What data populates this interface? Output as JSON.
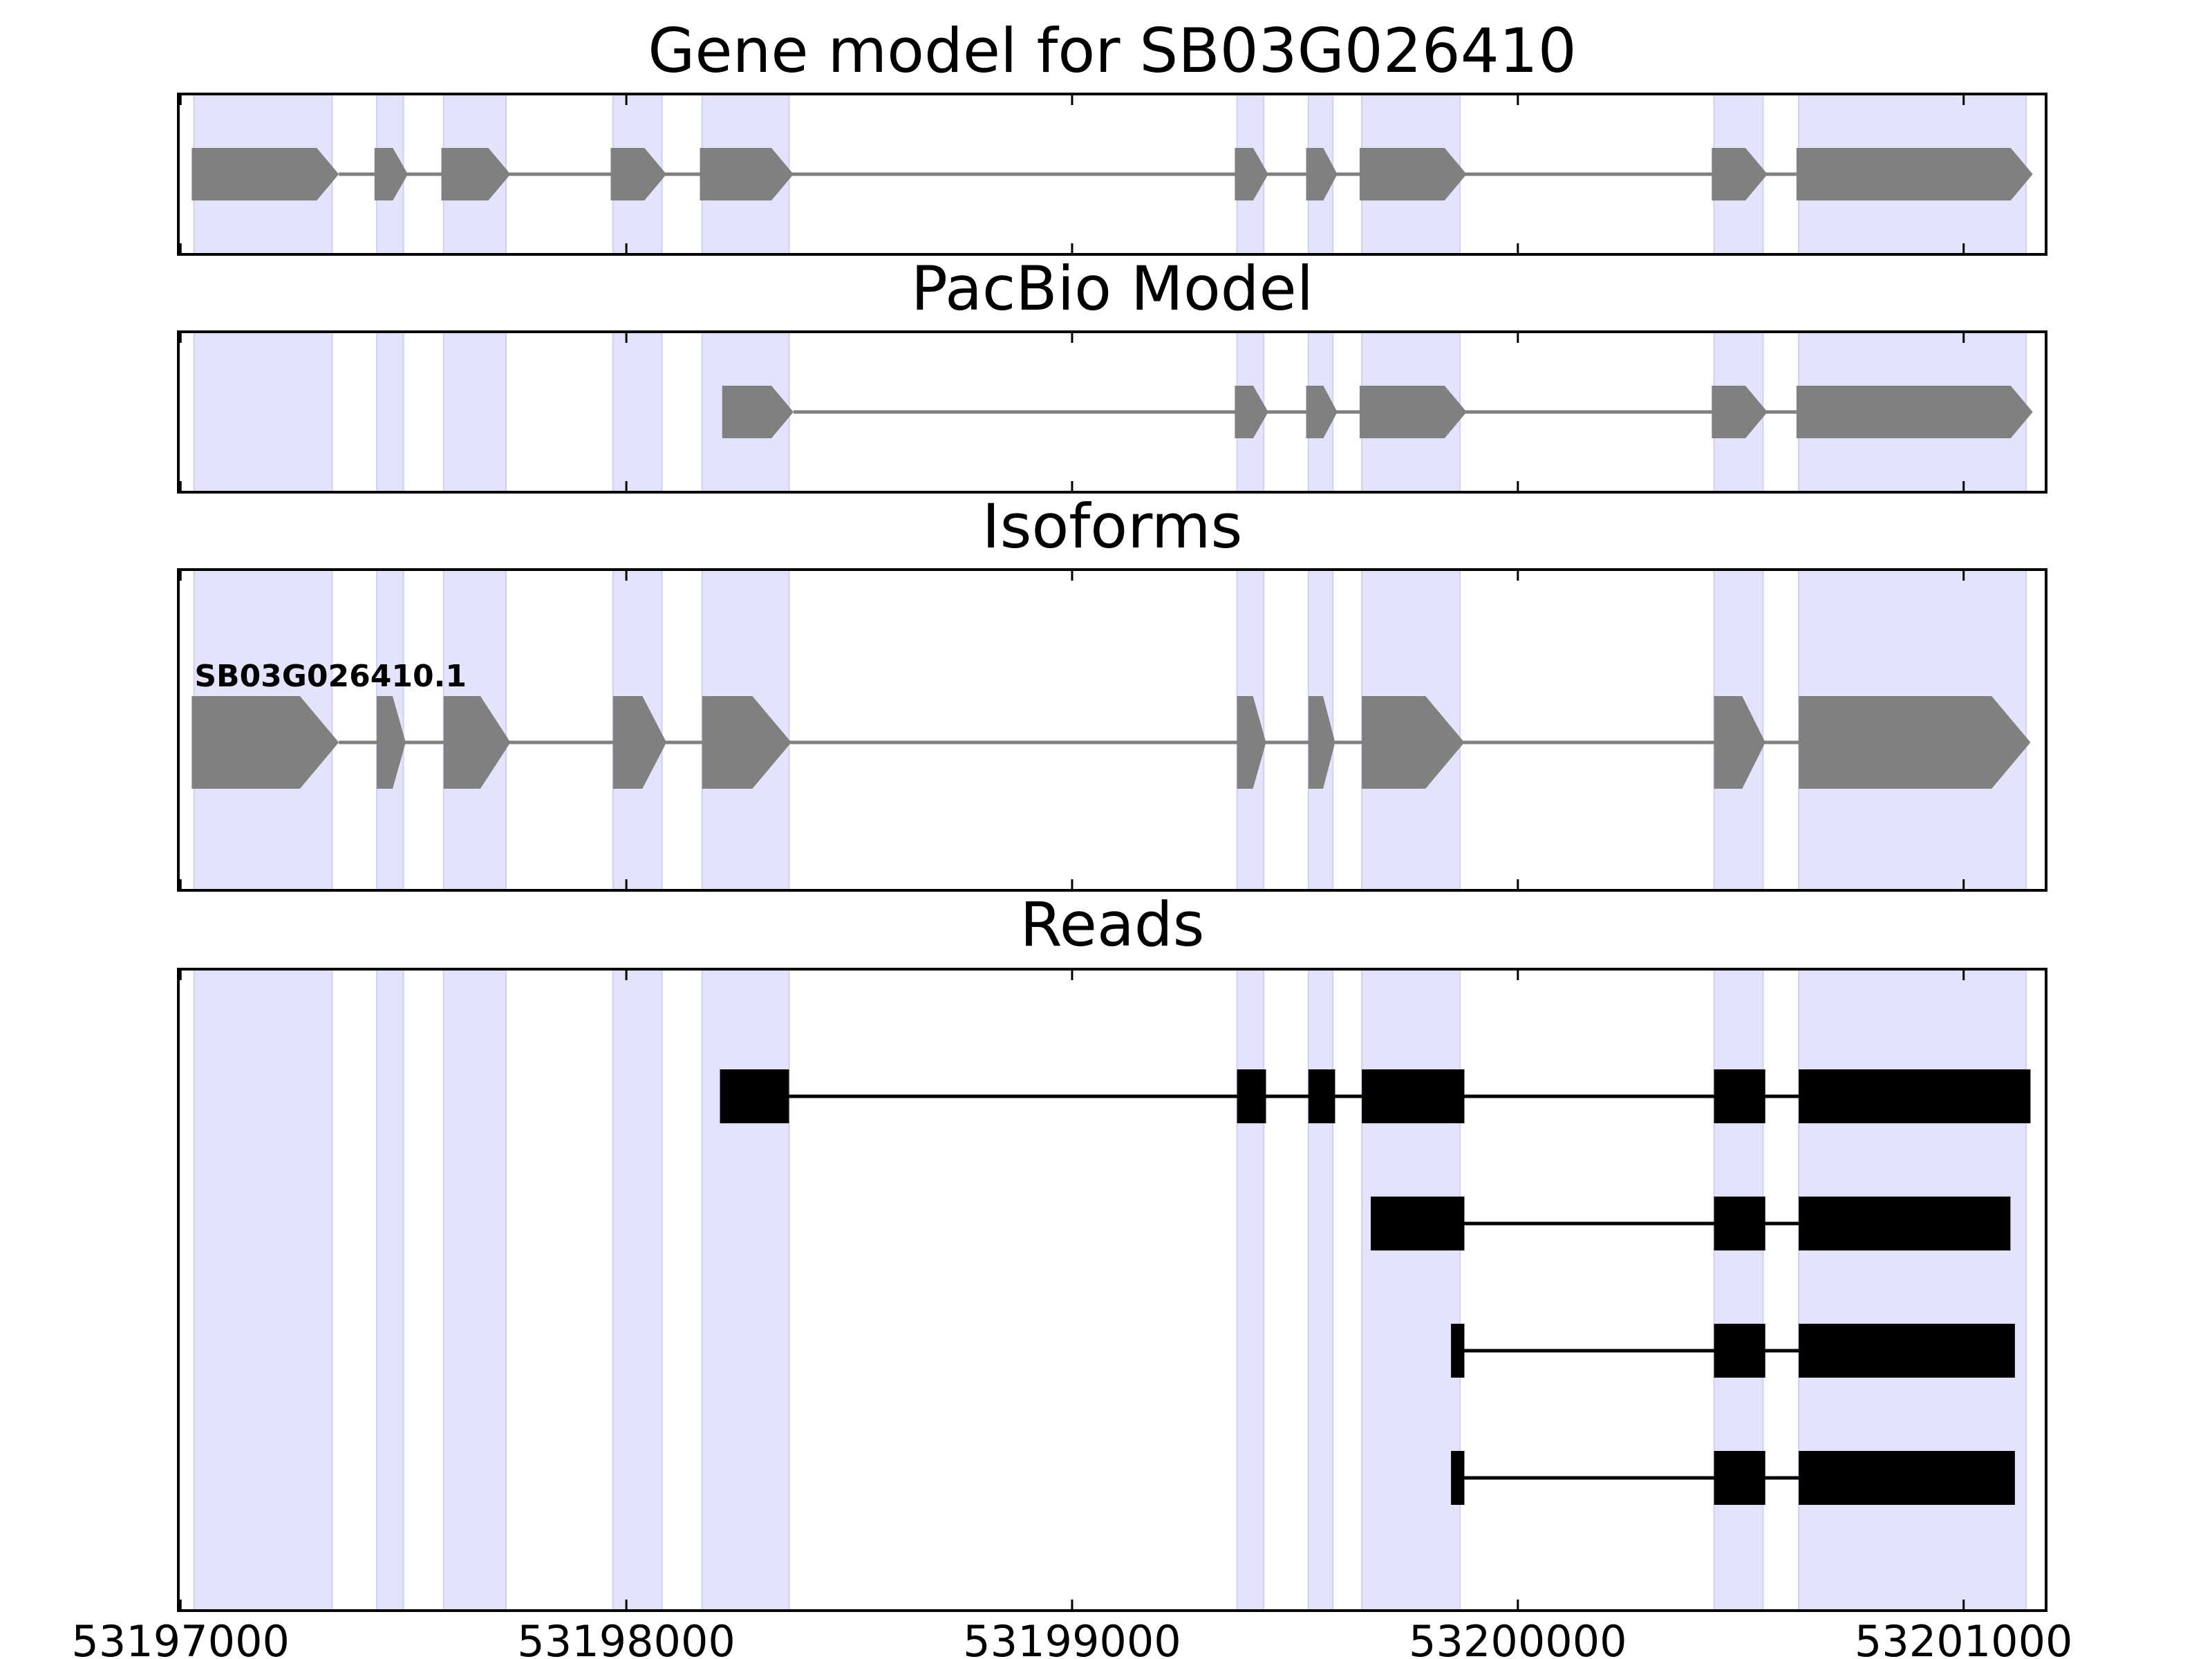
{
  "chart_data": {
    "type": "gene-track",
    "xlim": [
      53196995,
      53201185
    ],
    "x_ticks": [
      53197000,
      53198000,
      53199000,
      53200000,
      53201000
    ],
    "x_tick_labels": [
      "53197000",
      "53198000",
      "53199000",
      "53200000",
      "53201000"
    ],
    "highlight_regions": [
      [
        53197030,
        53197340
      ],
      [
        53197440,
        53197500
      ],
      [
        53197590,
        53197730
      ],
      [
        53197970,
        53198080
      ],
      [
        53198170,
        53198365
      ],
      [
        53199370,
        53199430
      ],
      [
        53199530,
        53199585
      ],
      [
        53199650,
        53199870
      ],
      [
        53200440,
        53200550
      ],
      [
        53200630,
        53201140
      ]
    ],
    "panels": [
      {
        "title": "Gene model for SB03G026410",
        "transcripts": [
          {
            "label": "",
            "exons": [
              [
                53197025,
                53197355
              ],
              [
                53197435,
                53197510
              ],
              [
                53197585,
                53197740
              ],
              [
                53197965,
                53198090
              ],
              [
                53198165,
                53198375
              ],
              [
                53199365,
                53199440
              ],
              [
                53199525,
                53199595
              ],
              [
                53199645,
                53199885
              ],
              [
                53200435,
                53200560
              ],
              [
                53200625,
                53201155
              ]
            ]
          }
        ]
      },
      {
        "title": "PacBio Model",
        "transcripts": [
          {
            "label": "",
            "exons": [
              [
                53198215,
                53198375
              ],
              [
                53199365,
                53199440
              ],
              [
                53199525,
                53199595
              ],
              [
                53199645,
                53199885
              ],
              [
                53200435,
                53200560
              ],
              [
                53200625,
                53201155
              ]
            ]
          }
        ]
      },
      {
        "title": "Isoforms",
        "transcripts": [
          {
            "label": "SB03G026410.1",
            "exons": [
              [
                53197025,
                53197355
              ],
              [
                53197440,
                53197505
              ],
              [
                53197590,
                53197740
              ],
              [
                53197970,
                53198090
              ],
              [
                53198170,
                53198370
              ],
              [
                53199370,
                53199435
              ],
              [
                53199530,
                53199590
              ],
              [
                53199650,
                53199880
              ],
              [
                53200440,
                53200555
              ],
              [
                53200630,
                53201150
              ]
            ]
          }
        ]
      },
      {
        "title": "Reads",
        "reads": [
          {
            "exons": [
              [
                53198210,
                53198365
              ],
              [
                53199370,
                53199435
              ],
              [
                53199530,
                53199590
              ],
              [
                53199650,
                53199880
              ],
              [
                53200440,
                53200555
              ],
              [
                53200630,
                53201150
              ]
            ]
          },
          {
            "exons": [
              [
                53199670,
                53199880
              ],
              [
                53200440,
                53200555
              ],
              [
                53200630,
                53201105
              ]
            ]
          },
          {
            "exons": [
              [
                53199850,
                53199880
              ],
              [
                53200440,
                53200555
              ],
              [
                53200630,
                53201115
              ]
            ]
          },
          {
            "exons": [
              [
                53199850,
                53199880
              ],
              [
                53200440,
                53200555
              ],
              [
                53200630,
                53201115
              ]
            ]
          }
        ]
      }
    ]
  }
}
